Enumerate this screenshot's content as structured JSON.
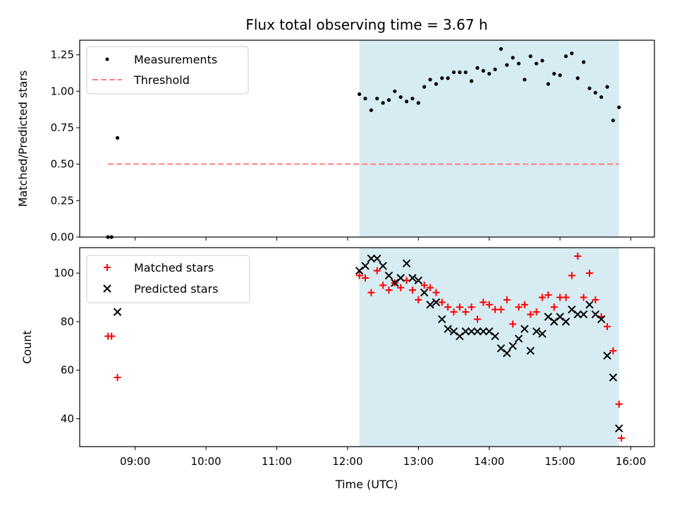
{
  "title": "Flux total observing time = 3.67 h",
  "colors": {
    "measurement": "#000000",
    "threshold": "#ff7f7f",
    "matched": "#ff0000",
    "predicted": "#000000",
    "span": "#add8e6"
  },
  "chart_data": [
    {
      "type": "scatter",
      "panel": "top",
      "title": "Flux total observing time = 3.67 h",
      "xlabel": "",
      "ylabel": "Matched/Predicted stars",
      "xlim": [
        "08:13",
        "16:20"
      ],
      "ylim": [
        0,
        1.35
      ],
      "yticks": [
        0.0,
        0.25,
        0.5,
        0.75,
        1.0,
        1.25
      ],
      "ytick_labels": [
        "0.00",
        "0.25",
        "0.50",
        "0.75",
        "1.00",
        "1.25"
      ],
      "legend_position": "top-left",
      "shaded_span": [
        "12:10",
        "15:50"
      ],
      "threshold": {
        "name": "Threshold",
        "y": 0.5,
        "x": [
          "08:37",
          "15:50"
        ]
      },
      "series": [
        {
          "name": "Measurements",
          "x": [
            "08:37",
            "08:40",
            "08:45",
            "12:10",
            "12:15",
            "12:20",
            "12:25",
            "12:30",
            "12:35",
            "12:40",
            "12:45",
            "12:50",
            "12:55",
            "13:00",
            "13:05",
            "13:10",
            "13:15",
            "13:20",
            "13:25",
            "13:30",
            "13:35",
            "13:40",
            "13:45",
            "13:50",
            "13:55",
            "14:00",
            "14:05",
            "14:10",
            "14:15",
            "14:20",
            "14:25",
            "14:30",
            "14:35",
            "14:40",
            "14:45",
            "14:50",
            "14:55",
            "15:00",
            "15:05",
            "15:10",
            "15:15",
            "15:20",
            "15:25",
            "15:30",
            "15:35",
            "15:40",
            "15:45",
            "15:50"
          ],
          "y": [
            0.0,
            0.0,
            0.68,
            0.98,
            0.95,
            0.87,
            0.95,
            0.92,
            0.94,
            1.0,
            0.96,
            0.93,
            0.95,
            0.92,
            1.03,
            1.08,
            1.05,
            1.09,
            1.09,
            1.13,
            1.13,
            1.13,
            1.07,
            1.16,
            1.14,
            1.12,
            1.15,
            1.29,
            1.18,
            1.23,
            1.19,
            1.08,
            1.24,
            1.19,
            1.21,
            1.05,
            1.12,
            1.11,
            1.24,
            1.26,
            1.09,
            1.2,
            1.02,
            0.99,
            0.96,
            1.03,
            0.8,
            0.89
          ]
        }
      ]
    },
    {
      "type": "scatter",
      "panel": "bottom",
      "xlabel": "Time (UTC)",
      "ylabel": "Count",
      "xlim": [
        "08:13",
        "16:20"
      ],
      "ylim": [
        28.5,
        110.5
      ],
      "yticks": [
        40,
        60,
        80,
        100
      ],
      "ytick_labels": [
        "40",
        "60",
        "80",
        "100"
      ],
      "xticks": [
        "09:00",
        "10:00",
        "11:00",
        "12:00",
        "13:00",
        "14:00",
        "15:00",
        "16:00"
      ],
      "xtick_labels": [
        "09:00",
        "10:00",
        "11:00",
        "12:00",
        "13:00",
        "14:00",
        "15:00",
        "16:00"
      ],
      "legend_position": "top-left",
      "shaded_span": [
        "12:10",
        "15:50"
      ],
      "series": [
        {
          "name": "Matched stars",
          "marker": "+",
          "x": [
            "08:37",
            "08:40",
            "08:45",
            "12:10",
            "12:15",
            "12:20",
            "12:25",
            "12:30",
            "12:35",
            "12:40",
            "12:45",
            "12:50",
            "12:55",
            "13:00",
            "13:05",
            "13:10",
            "13:15",
            "13:20",
            "13:25",
            "13:30",
            "13:35",
            "13:40",
            "13:45",
            "13:50",
            "13:55",
            "14:00",
            "14:05",
            "14:10",
            "14:15",
            "14:20",
            "14:25",
            "14:30",
            "14:35",
            "14:40",
            "14:45",
            "14:50",
            "14:55",
            "15:00",
            "15:05",
            "15:10",
            "15:15",
            "15:20",
            "15:25",
            "15:30",
            "15:35",
            "15:40",
            "15:45",
            "15:50"
          ],
          "y": [
            74,
            74,
            57,
            99,
            98,
            92,
            101,
            95,
            93,
            96,
            94,
            97,
            93,
            89,
            95,
            94,
            92,
            88,
            86,
            84,
            86,
            84,
            86,
            81,
            88,
            87,
            85,
            85,
            89,
            79,
            86,
            87,
            83,
            84,
            90,
            91,
            86,
            90,
            90,
            99,
            107,
            90,
            100,
            89,
            82,
            78,
            68,
            46
          ]
        },
        {
          "name": "Predicted stars",
          "marker": "x",
          "x": [
            "08:37",
            "08:40",
            "08:45",
            "12:10",
            "12:15",
            "12:20",
            "12:25",
            "12:30",
            "12:35",
            "12:40",
            "12:45",
            "12:50",
            "12:55",
            "13:00",
            "13:05",
            "13:10",
            "13:15",
            "13:20",
            "13:25",
            "13:30",
            "13:35",
            "13:40",
            "13:45",
            "13:50",
            "13:55",
            "14:00",
            "14:05",
            "14:10",
            "14:15",
            "14:20",
            "14:25",
            "14:30",
            "14:35",
            "14:40",
            "14:45",
            "14:50",
            "14:55",
            "15:00",
            "15:05",
            "15:10",
            "15:15",
            "15:20",
            "15:25",
            "15:30",
            "15:35",
            "15:40",
            "15:45",
            "15:50"
          ],
          "y": [
            null,
            null,
            84,
            101,
            103,
            106,
            106,
            103,
            99,
            96,
            98,
            104,
            98,
            97,
            92,
            87,
            88,
            81,
            77,
            76,
            74,
            76,
            76,
            76,
            76,
            76,
            74,
            69,
            67,
            70,
            73,
            77,
            68,
            76,
            75,
            82,
            80,
            82,
            80,
            85,
            83,
            83,
            87,
            83,
            81,
            66,
            57,
            36
          ]
        }
      ],
      "extra_points": {
        "matched_last": [
          "15:52",
          32
        ],
        "predicted_last": [
          "15:52",
          36
        ],
        "matched_pre_last": [
          "15:49",
          46
        ]
      }
    }
  ]
}
